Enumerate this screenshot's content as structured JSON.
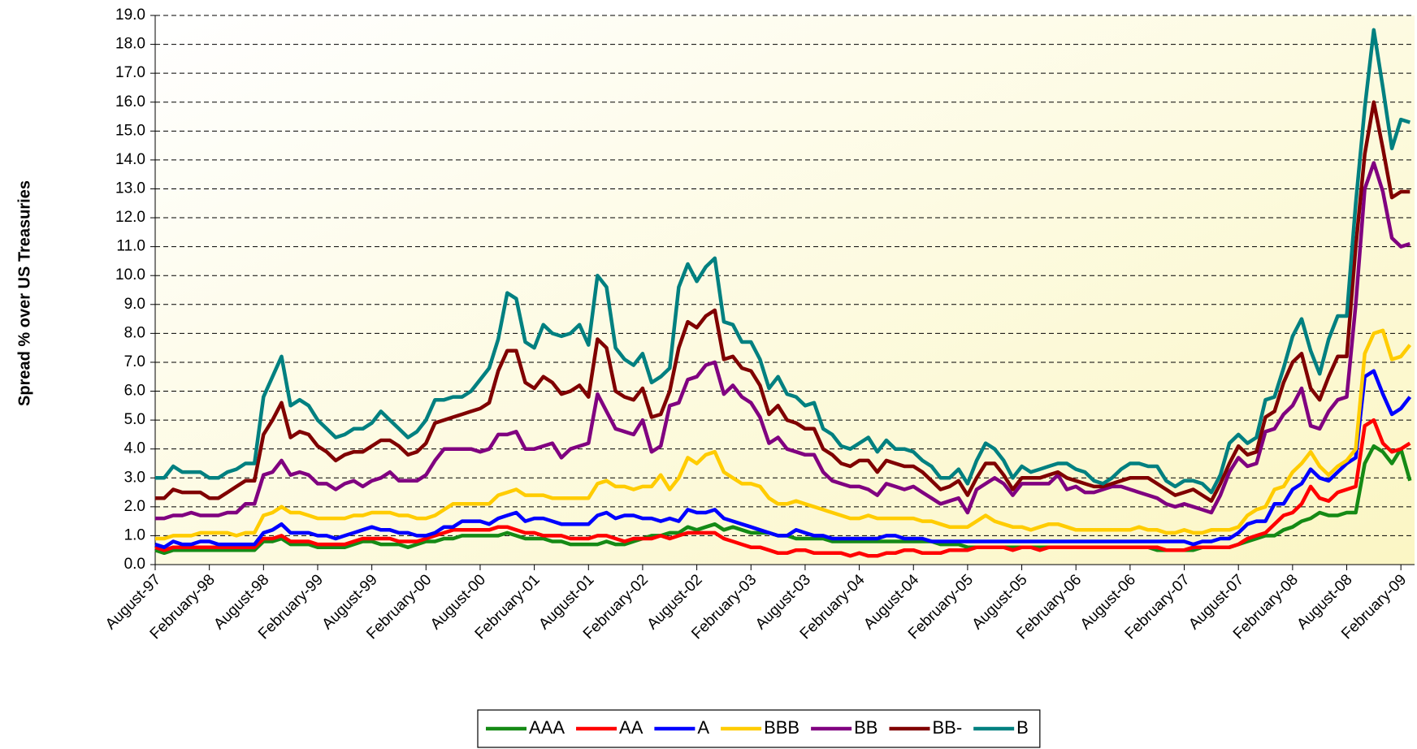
{
  "chart_data": {
    "type": "line",
    "y_label": "Spread % over US Treasuries",
    "ylim": [
      0,
      19
    ],
    "yticks": [
      {
        "value": 0,
        "label": "0.0"
      },
      {
        "value": 1,
        "label": "1.0"
      },
      {
        "value": 2,
        "label": "2.0"
      },
      {
        "value": 3,
        "label": "3.0"
      },
      {
        "value": 4,
        "label": "4.0"
      },
      {
        "value": 5,
        "label": "5.0"
      },
      {
        "value": 6,
        "label": "6.0"
      },
      {
        "value": 7,
        "label": "7.0"
      },
      {
        "value": 8,
        "label": "8.0"
      },
      {
        "value": 9,
        "label": "9.0"
      },
      {
        "value": 10,
        "label": "10.0"
      },
      {
        "value": 11,
        "label": "11.0"
      },
      {
        "value": 12,
        "label": "12.0"
      },
      {
        "value": 13,
        "label": "13.0"
      },
      {
        "value": 14,
        "label": "14.0"
      },
      {
        "value": 15,
        "label": "15.0"
      },
      {
        "value": 16,
        "label": "16.0"
      },
      {
        "value": 17,
        "label": "17.0"
      },
      {
        "value": 18,
        "label": "18.0"
      },
      {
        "value": 19,
        "label": "19.0"
      }
    ],
    "grid": true,
    "legend": "bottom",
    "categories": [
      "August-97",
      null,
      null,
      null,
      null,
      null,
      "February-98",
      null,
      null,
      null,
      null,
      null,
      "August-98",
      null,
      null,
      null,
      null,
      null,
      "February-99",
      null,
      null,
      null,
      null,
      null,
      "August-99",
      null,
      null,
      null,
      null,
      null,
      "February-00",
      null,
      null,
      null,
      null,
      null,
      "August-00",
      null,
      null,
      null,
      null,
      null,
      "February-01",
      null,
      null,
      null,
      null,
      null,
      "August-01",
      null,
      null,
      null,
      null,
      null,
      "February-02",
      null,
      null,
      null,
      null,
      null,
      "August-02",
      null,
      null,
      null,
      null,
      null,
      "February-03",
      null,
      null,
      null,
      null,
      null,
      "August-03",
      null,
      null,
      null,
      null,
      null,
      "February-04",
      null,
      null,
      null,
      null,
      null,
      "August-04",
      null,
      null,
      null,
      null,
      null,
      "February-05",
      null,
      null,
      null,
      null,
      null,
      "August-05",
      null,
      null,
      null,
      null,
      null,
      "February-06",
      null,
      null,
      null,
      null,
      null,
      "August-06",
      null,
      null,
      null,
      null,
      null,
      "February-07",
      null,
      null,
      null,
      null,
      null,
      "August-07",
      null,
      null,
      null,
      null,
      null,
      "February-08",
      null,
      null,
      null,
      null,
      null,
      "August-08",
      null,
      null,
      null,
      null,
      null,
      "February-09",
      null
    ],
    "series": [
      {
        "name": "AAA",
        "color": "#158a15",
        "values": [
          0.5,
          0.4,
          0.5,
          0.5,
          0.5,
          0.5,
          0.5,
          0.5,
          0.5,
          0.5,
          0.5,
          0.5,
          0.8,
          0.8,
          0.9,
          0.7,
          0.7,
          0.7,
          0.6,
          0.6,
          0.6,
          0.6,
          0.7,
          0.8,
          0.8,
          0.7,
          0.7,
          0.7,
          0.6,
          0.7,
          0.8,
          0.8,
          0.9,
          0.9,
          1.0,
          1.0,
          1.0,
          1.0,
          1.0,
          1.1,
          1.0,
          0.9,
          0.9,
          0.9,
          0.8,
          0.8,
          0.7,
          0.7,
          0.7,
          0.7,
          0.8,
          0.7,
          0.7,
          0.8,
          0.9,
          1.0,
          1.0,
          1.1,
          1.1,
          1.3,
          1.2,
          1.3,
          1.4,
          1.2,
          1.3,
          1.2,
          1.1,
          1.1,
          1.1,
          1.0,
          1.0,
          0.9,
          0.9,
          0.9,
          0.9,
          0.8,
          0.8,
          0.8,
          0.8,
          0.8,
          0.8,
          0.8,
          0.8,
          0.8,
          0.8,
          0.8,
          0.8,
          0.7,
          0.7,
          0.7,
          0.6,
          0.6,
          0.6,
          0.6,
          0.6,
          0.6,
          0.6,
          0.6,
          0.6,
          0.6,
          0.6,
          0.6,
          0.6,
          0.6,
          0.6,
          0.6,
          0.6,
          0.6,
          0.6,
          0.6,
          0.6,
          0.5,
          0.5,
          0.5,
          0.5,
          0.5,
          0.6,
          0.6,
          0.6,
          0.6,
          0.7,
          0.8,
          0.9,
          1.0,
          1.0,
          1.2,
          1.3,
          1.5,
          1.6,
          1.8,
          1.7,
          1.7,
          1.8,
          1.8,
          3.5,
          4.1,
          3.9,
          3.5,
          4.0,
          2.9
        ]
      },
      {
        "name": "AA",
        "color": "#ff0000",
        "values": [
          0.6,
          0.5,
          0.6,
          0.6,
          0.6,
          0.6,
          0.6,
          0.6,
          0.6,
          0.6,
          0.6,
          0.6,
          0.9,
          0.9,
          1.0,
          0.8,
          0.8,
          0.8,
          0.7,
          0.7,
          0.7,
          0.7,
          0.8,
          0.9,
          0.9,
          0.9,
          0.9,
          0.8,
          0.8,
          0.8,
          0.9,
          1.0,
          1.1,
          1.2,
          1.2,
          1.2,
          1.2,
          1.2,
          1.3,
          1.3,
          1.2,
          1.1,
          1.1,
          1.0,
          1.0,
          1.0,
          0.9,
          0.9,
          0.9,
          1.0,
          1.0,
          0.9,
          0.8,
          0.9,
          0.9,
          0.9,
          1.0,
          0.9,
          1.0,
          1.1,
          1.1,
          1.1,
          1.1,
          0.9,
          0.8,
          0.7,
          0.6,
          0.6,
          0.5,
          0.4,
          0.4,
          0.5,
          0.5,
          0.4,
          0.4,
          0.4,
          0.4,
          0.3,
          0.4,
          0.3,
          0.3,
          0.4,
          0.4,
          0.5,
          0.5,
          0.4,
          0.4,
          0.4,
          0.5,
          0.5,
          0.5,
          0.6,
          0.6,
          0.6,
          0.6,
          0.5,
          0.6,
          0.6,
          0.5,
          0.6,
          0.6,
          0.6,
          0.6,
          0.6,
          0.6,
          0.6,
          0.6,
          0.6,
          0.6,
          0.6,
          0.6,
          0.6,
          0.5,
          0.5,
          0.5,
          0.6,
          0.6,
          0.6,
          0.6,
          0.6,
          0.7,
          0.9,
          1.0,
          1.1,
          1.4,
          1.7,
          1.8,
          2.1,
          2.7,
          2.3,
          2.2,
          2.5,
          2.6,
          2.7,
          4.8,
          5.0,
          4.2,
          3.9,
          4.0,
          4.2
        ]
      },
      {
        "name": "A",
        "color": "#0000ff",
        "values": [
          0.7,
          0.6,
          0.8,
          0.7,
          0.7,
          0.8,
          0.8,
          0.7,
          0.7,
          0.7,
          0.7,
          0.7,
          1.1,
          1.2,
          1.4,
          1.1,
          1.1,
          1.1,
          1.0,
          1.0,
          0.9,
          1.0,
          1.1,
          1.2,
          1.3,
          1.2,
          1.2,
          1.1,
          1.1,
          1.0,
          1.0,
          1.1,
          1.3,
          1.3,
          1.5,
          1.5,
          1.5,
          1.4,
          1.6,
          1.7,
          1.8,
          1.5,
          1.6,
          1.6,
          1.5,
          1.4,
          1.4,
          1.4,
          1.4,
          1.7,
          1.8,
          1.6,
          1.7,
          1.7,
          1.6,
          1.6,
          1.5,
          1.6,
          1.5,
          1.9,
          1.8,
          1.8,
          1.9,
          1.6,
          1.5,
          1.4,
          1.3,
          1.2,
          1.1,
          1.0,
          1.0,
          1.2,
          1.1,
          1.0,
          1.0,
          0.9,
          0.9,
          0.9,
          0.9,
          0.9,
          0.9,
          1.0,
          1.0,
          0.9,
          0.9,
          0.9,
          0.8,
          0.8,
          0.8,
          0.8,
          0.8,
          0.8,
          0.8,
          0.8,
          0.8,
          0.8,
          0.8,
          0.8,
          0.8,
          0.8,
          0.8,
          0.8,
          0.8,
          0.8,
          0.8,
          0.8,
          0.8,
          0.8,
          0.8,
          0.8,
          0.8,
          0.8,
          0.8,
          0.8,
          0.8,
          0.7,
          0.8,
          0.8,
          0.9,
          0.9,
          1.1,
          1.4,
          1.5,
          1.5,
          2.1,
          2.1,
          2.6,
          2.8,
          3.3,
          3.0,
          2.9,
          3.2,
          3.5,
          3.7,
          6.5,
          6.7,
          5.9,
          5.2,
          5.4,
          5.8
        ]
      },
      {
        "name": "BBB",
        "color": "#ffcc00",
        "values": [
          0.9,
          0.9,
          1.0,
          1.0,
          1.0,
          1.1,
          1.1,
          1.1,
          1.1,
          1.0,
          1.1,
          1.1,
          1.7,
          1.8,
          2.0,
          1.8,
          1.8,
          1.7,
          1.6,
          1.6,
          1.6,
          1.6,
          1.7,
          1.7,
          1.8,
          1.8,
          1.8,
          1.7,
          1.7,
          1.6,
          1.6,
          1.7,
          1.9,
          2.1,
          2.1,
          2.1,
          2.1,
          2.1,
          2.4,
          2.5,
          2.6,
          2.4,
          2.4,
          2.4,
          2.3,
          2.3,
          2.3,
          2.3,
          2.3,
          2.8,
          2.9,
          2.7,
          2.7,
          2.6,
          2.7,
          2.7,
          3.1,
          2.6,
          3.0,
          3.7,
          3.5,
          3.8,
          3.9,
          3.2,
          3.0,
          2.8,
          2.8,
          2.7,
          2.3,
          2.1,
          2.1,
          2.2,
          2.1,
          2.0,
          1.9,
          1.8,
          1.7,
          1.6,
          1.6,
          1.7,
          1.6,
          1.6,
          1.6,
          1.6,
          1.6,
          1.5,
          1.5,
          1.4,
          1.3,
          1.3,
          1.3,
          1.5,
          1.7,
          1.5,
          1.4,
          1.3,
          1.3,
          1.2,
          1.3,
          1.4,
          1.4,
          1.3,
          1.2,
          1.2,
          1.2,
          1.2,
          1.2,
          1.2,
          1.2,
          1.3,
          1.2,
          1.2,
          1.1,
          1.1,
          1.2,
          1.1,
          1.1,
          1.2,
          1.2,
          1.2,
          1.3,
          1.7,
          1.9,
          2.0,
          2.6,
          2.7,
          3.2,
          3.5,
          3.9,
          3.4,
          3.1,
          3.4,
          3.6,
          4.0,
          7.3,
          8.0,
          8.1,
          7.1,
          7.2,
          7.6
        ]
      },
      {
        "name": "BB",
        "color": "#800080",
        "values": [
          1.6,
          1.6,
          1.7,
          1.7,
          1.8,
          1.7,
          1.7,
          1.7,
          1.8,
          1.8,
          2.1,
          2.1,
          3.1,
          3.2,
          3.6,
          3.1,
          3.2,
          3.1,
          2.8,
          2.8,
          2.6,
          2.8,
          2.9,
          2.7,
          2.9,
          3.0,
          3.2,
          2.9,
          2.9,
          2.9,
          3.1,
          3.6,
          4.0,
          4.0,
          4.0,
          4.0,
          3.9,
          4.0,
          4.5,
          4.5,
          4.6,
          4.0,
          4.0,
          4.1,
          4.2,
          3.7,
          4.0,
          4.1,
          4.2,
          5.9,
          5.3,
          4.7,
          4.6,
          4.5,
          5.0,
          3.9,
          4.1,
          5.5,
          5.6,
          6.4,
          6.5,
          6.9,
          7.0,
          5.9,
          6.2,
          5.8,
          5.6,
          5.1,
          4.2,
          4.4,
          4.0,
          3.9,
          3.8,
          3.8,
          3.2,
          2.9,
          2.8,
          2.7,
          2.7,
          2.6,
          2.4,
          2.8,
          2.7,
          2.6,
          2.7,
          2.5,
          2.3,
          2.1,
          2.2,
          2.3,
          1.8,
          2.6,
          2.8,
          3.0,
          2.8,
          2.4,
          2.8,
          2.8,
          2.8,
          2.8,
          3.1,
          2.6,
          2.7,
          2.5,
          2.5,
          2.6,
          2.7,
          2.7,
          2.6,
          2.5,
          2.4,
          2.3,
          2.1,
          2.0,
          2.1,
          2.0,
          1.9,
          1.8,
          2.4,
          3.2,
          3.7,
          3.4,
          3.5,
          4.6,
          4.7,
          5.2,
          5.5,
          6.1,
          4.8,
          4.7,
          5.3,
          5.7,
          5.8,
          9.0,
          13.0,
          13.9,
          12.9,
          11.3,
          11.0,
          11.1
        ]
      },
      {
        "name": "BB-",
        "color": "#800000",
        "values": [
          2.3,
          2.3,
          2.6,
          2.5,
          2.5,
          2.5,
          2.3,
          2.3,
          2.5,
          2.7,
          2.9,
          2.9,
          4.5,
          5.0,
          5.6,
          4.4,
          4.6,
          4.5,
          4.1,
          3.9,
          3.6,
          3.8,
          3.9,
          3.9,
          4.1,
          4.3,
          4.3,
          4.1,
          3.8,
          3.9,
          4.2,
          4.9,
          5.0,
          5.1,
          5.2,
          5.3,
          5.4,
          5.6,
          6.7,
          7.4,
          7.4,
          6.3,
          6.1,
          6.5,
          6.3,
          5.9,
          6.0,
          6.2,
          5.8,
          7.8,
          7.5,
          6.0,
          5.8,
          5.7,
          6.1,
          5.1,
          5.2,
          6.0,
          7.5,
          8.4,
          8.2,
          8.6,
          8.8,
          7.1,
          7.2,
          6.8,
          6.7,
          6.2,
          5.2,
          5.5,
          5.0,
          4.9,
          4.7,
          4.7,
          4.0,
          3.8,
          3.5,
          3.4,
          3.6,
          3.6,
          3.2,
          3.6,
          3.5,
          3.4,
          3.4,
          3.2,
          2.9,
          2.6,
          2.7,
          2.9,
          2.4,
          3.0,
          3.5,
          3.5,
          3.1,
          2.6,
          3.0,
          3.0,
          3.0,
          3.1,
          3.2,
          3.0,
          2.9,
          2.8,
          2.7,
          2.7,
          2.8,
          2.9,
          3.0,
          3.0,
          3.0,
          2.8,
          2.6,
          2.4,
          2.5,
          2.6,
          2.4,
          2.2,
          2.8,
          3.5,
          4.1,
          3.8,
          3.9,
          5.1,
          5.3,
          6.3,
          7.0,
          7.3,
          6.1,
          5.7,
          6.5,
          7.2,
          7.2,
          11.0,
          14.2,
          16.0,
          14.4,
          12.7,
          12.9,
          12.9
        ]
      },
      {
        "name": "B",
        "color": "#008080",
        "values": [
          3.0,
          3.0,
          3.4,
          3.2,
          3.2,
          3.2,
          3.0,
          3.0,
          3.2,
          3.3,
          3.5,
          3.5,
          5.8,
          6.5,
          7.2,
          5.5,
          5.7,
          5.5,
          5.0,
          4.7,
          4.4,
          4.5,
          4.7,
          4.7,
          4.9,
          5.3,
          5.0,
          4.7,
          4.4,
          4.6,
          5.0,
          5.7,
          5.7,
          5.8,
          5.8,
          6.0,
          6.4,
          6.8,
          7.8,
          9.4,
          9.2,
          7.7,
          7.5,
          8.3,
          8.0,
          7.9,
          8.0,
          8.3,
          7.6,
          10.0,
          9.6,
          7.5,
          7.1,
          6.9,
          7.3,
          6.3,
          6.5,
          6.8,
          9.6,
          10.4,
          9.8,
          10.3,
          10.6,
          8.4,
          8.3,
          7.7,
          7.7,
          7.1,
          6.1,
          6.5,
          5.9,
          5.8,
          5.5,
          5.6,
          4.7,
          4.5,
          4.1,
          4.0,
          4.2,
          4.4,
          3.9,
          4.3,
          4.0,
          4.0,
          3.9,
          3.6,
          3.4,
          3.0,
          3.0,
          3.3,
          2.8,
          3.6,
          4.2,
          4.0,
          3.6,
          3.0,
          3.4,
          3.2,
          3.3,
          3.4,
          3.5,
          3.5,
          3.3,
          3.2,
          2.9,
          2.8,
          3.0,
          3.3,
          3.5,
          3.5,
          3.4,
          3.4,
          2.9,
          2.7,
          2.9,
          2.9,
          2.8,
          2.5,
          3.1,
          4.2,
          4.5,
          4.2,
          4.4,
          5.7,
          5.8,
          6.8,
          7.9,
          8.5,
          7.4,
          6.6,
          7.8,
          8.6,
          8.6,
          12.5,
          15.8,
          18.5,
          16.5,
          14.4,
          15.4,
          15.3
        ]
      }
    ]
  }
}
